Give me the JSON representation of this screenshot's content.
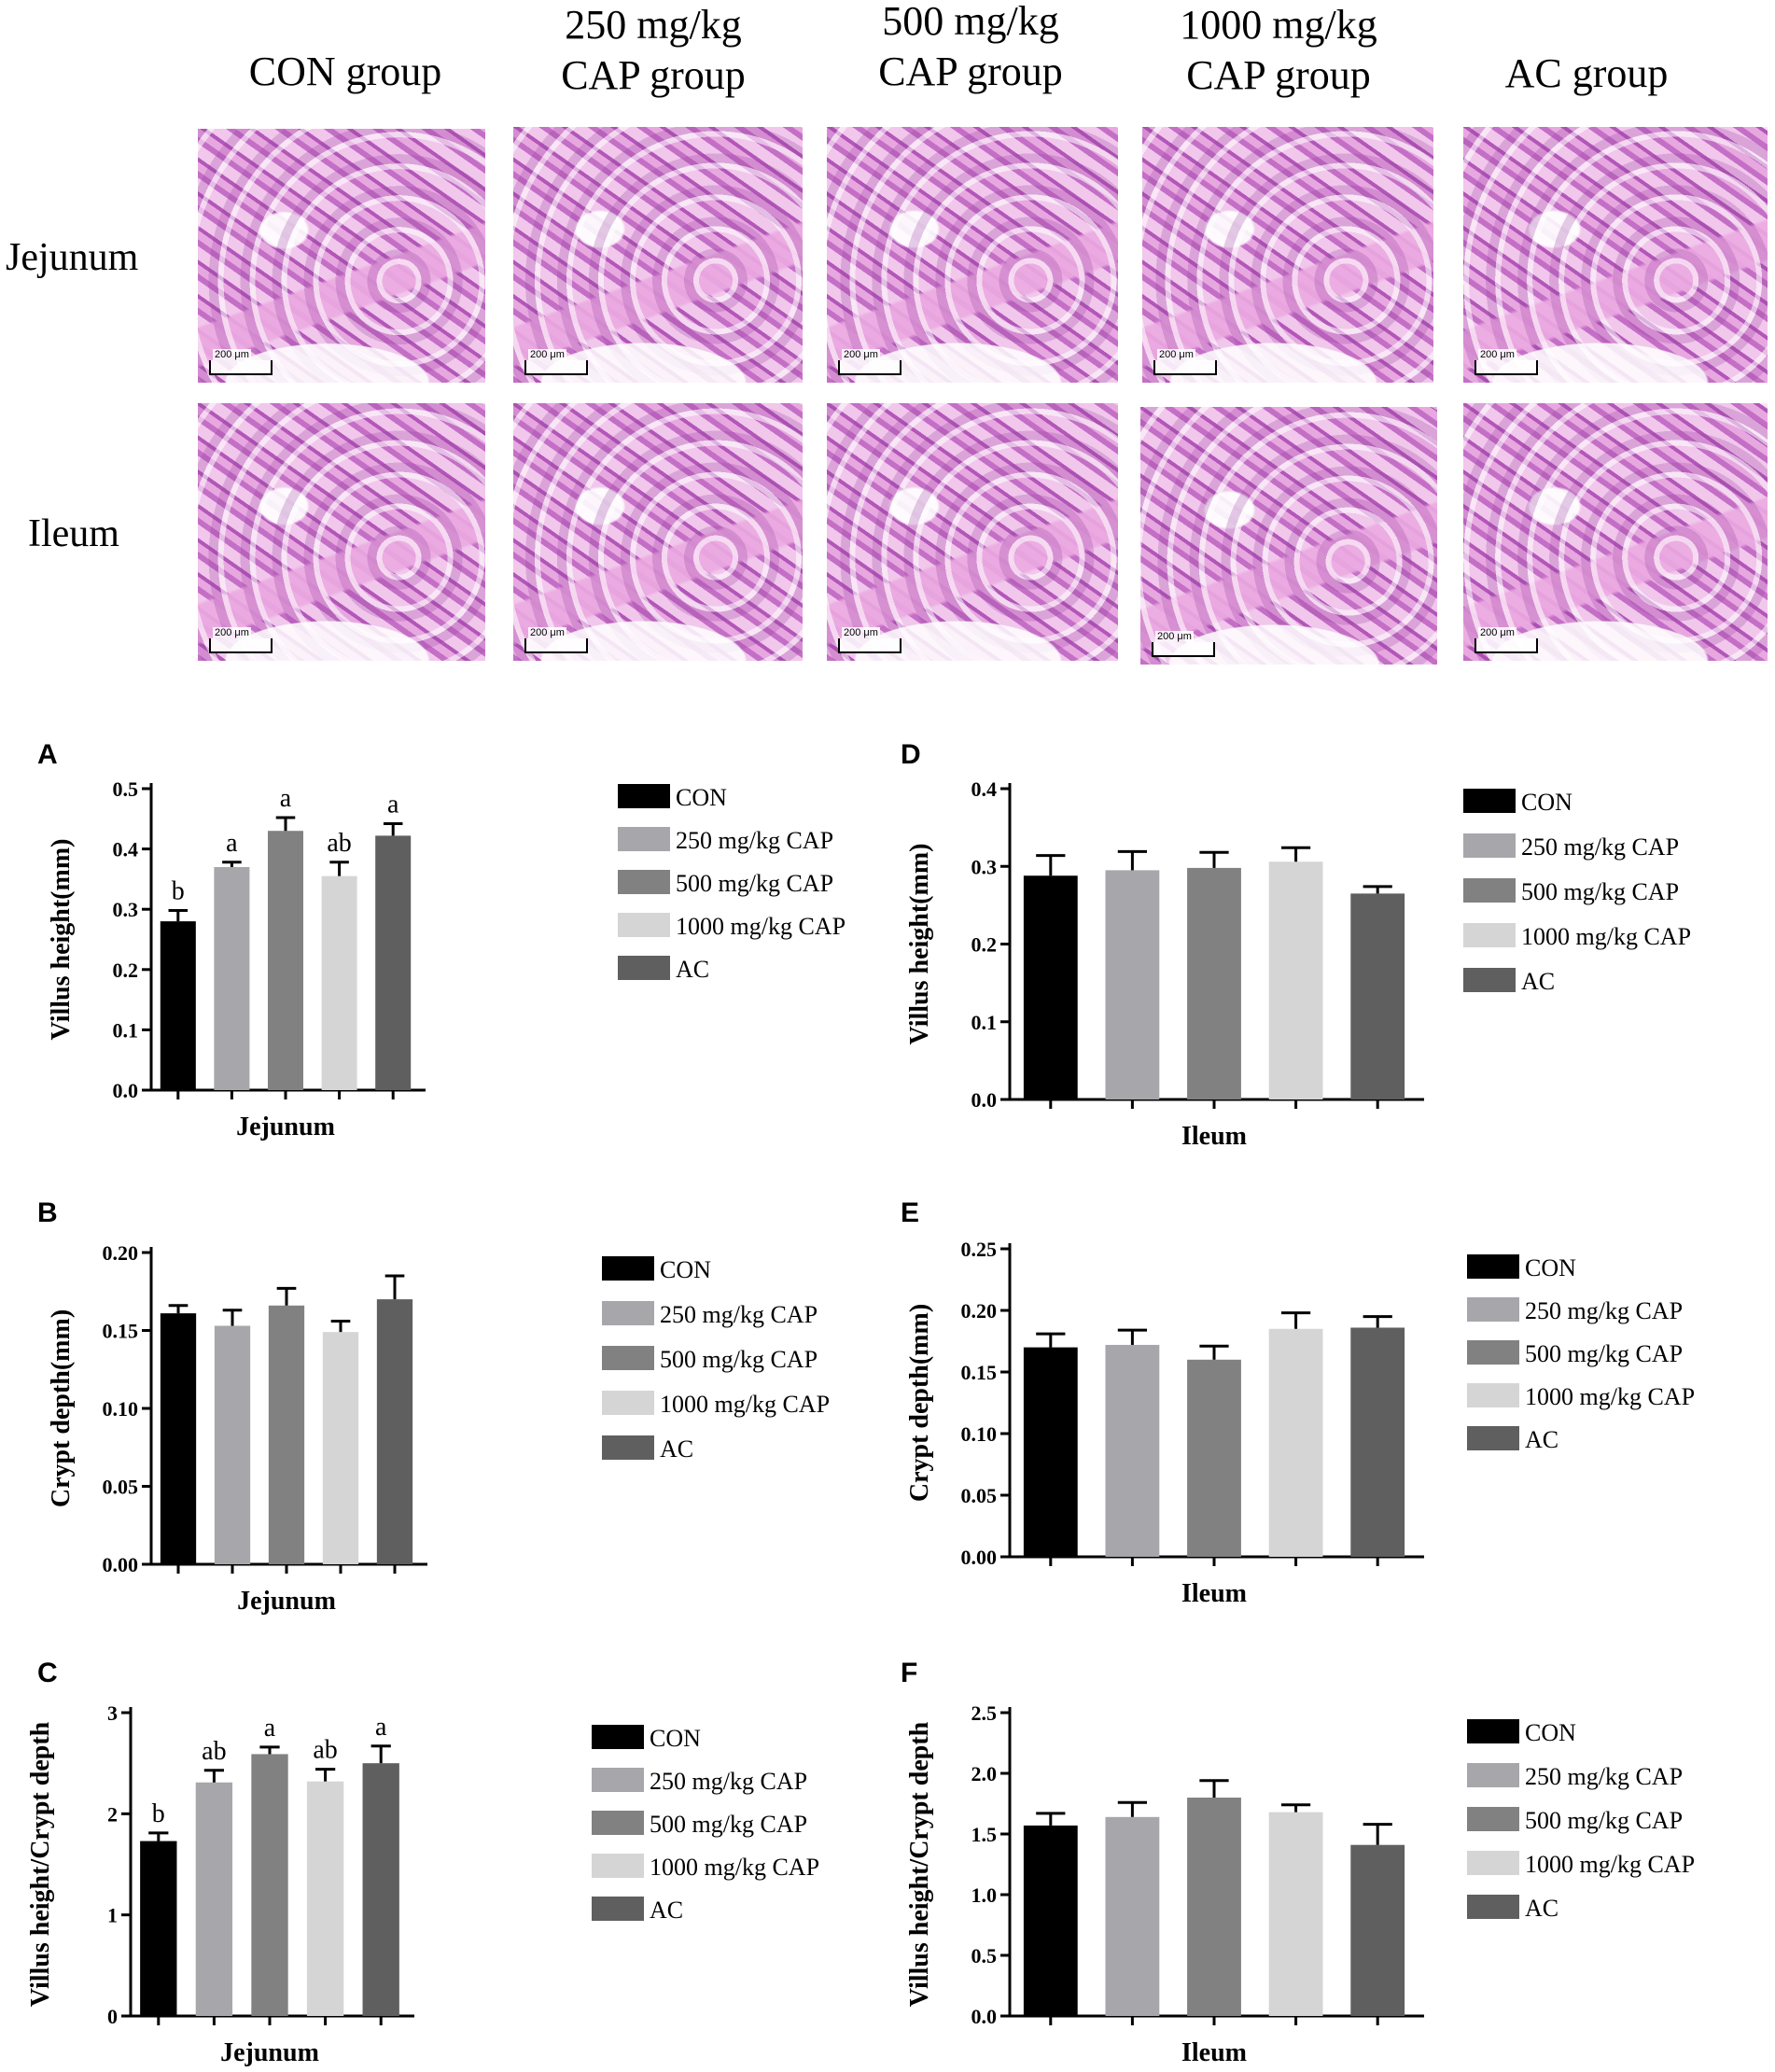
{
  "figure": {
    "column_headers": [
      [
        "CON group"
      ],
      [
        "250 mg/kg",
        "CAP group"
      ],
      [
        "500 mg/kg",
        "CAP group"
      ],
      [
        "1000 mg/kg",
        "CAP group"
      ],
      [
        "AC group"
      ]
    ],
    "row_labels": [
      "Jejunum",
      "Ileum"
    ],
    "scale_bar_label": "200 μm"
  },
  "legend": [
    "CON",
    "250 mg/kg CAP",
    "500 mg/kg CAP",
    "1000 mg/kg CAP",
    "AC"
  ],
  "colors": [
    "#000000",
    "#a6a6ab",
    "#818181",
    "#d5d5d5",
    "#5f5f5f"
  ],
  "chart_data": [
    {
      "panel": "A",
      "type": "bar",
      "categories": [
        "CON",
        "250 mg/kg CAP",
        "500 mg/kg CAP",
        "1000 mg/kg CAP",
        "AC"
      ],
      "values": [
        0.28,
        0.37,
        0.43,
        0.355,
        0.422
      ],
      "errors": [
        0.018,
        0.008,
        0.022,
        0.023,
        0.02
      ],
      "letters": [
        "b",
        "a",
        "a",
        "ab",
        "a"
      ],
      "ylabel": "Villus height(mm)",
      "xlabel": "Jejunum",
      "ylim": [
        0,
        0.5
      ],
      "yticks": [
        "0.0",
        "0.1",
        "0.2",
        "0.3",
        "0.4",
        "0.5"
      ]
    },
    {
      "panel": "D",
      "type": "bar",
      "categories": [
        "CON",
        "250 mg/kg CAP",
        "500 mg/kg CAP",
        "1000 mg/kg CAP",
        "AC"
      ],
      "values": [
        0.288,
        0.295,
        0.298,
        0.306,
        0.265
      ],
      "errors": [
        0.026,
        0.024,
        0.02,
        0.018,
        0.009
      ],
      "letters": [
        "",
        "",
        "",
        "",
        ""
      ],
      "ylabel": "Villus height(mm)",
      "xlabel": "Ileum",
      "ylim": [
        0,
        0.4
      ],
      "yticks": [
        "0.0",
        "0.1",
        "0.2",
        "0.3",
        "0.4"
      ]
    },
    {
      "panel": "B",
      "type": "bar",
      "categories": [
        "CON",
        "250 mg/kg CAP",
        "500 mg/kg CAP",
        "1000 mg/kg CAP",
        "AC"
      ],
      "values": [
        0.161,
        0.153,
        0.166,
        0.149,
        0.17
      ],
      "errors": [
        0.005,
        0.01,
        0.011,
        0.007,
        0.015
      ],
      "letters": [
        "",
        "",
        "",
        "",
        ""
      ],
      "ylabel": "Crypt depth(mm)",
      "xlabel": "Jejunum",
      "ylim": [
        0,
        0.2
      ],
      "yticks": [
        "0.00",
        "0.05",
        "0.10",
        "0.15",
        "0.20"
      ]
    },
    {
      "panel": "E",
      "type": "bar",
      "categories": [
        "CON",
        "250 mg/kg CAP",
        "500 mg/kg CAP",
        "1000 mg/kg CAP",
        "AC"
      ],
      "values": [
        0.17,
        0.172,
        0.16,
        0.185,
        0.186
      ],
      "errors": [
        0.011,
        0.012,
        0.011,
        0.013,
        0.009
      ],
      "letters": [
        "",
        "",
        "",
        "",
        ""
      ],
      "ylabel": "Crypt depth(mm)",
      "xlabel": "Ileum",
      "ylim": [
        0,
        0.25
      ],
      "yticks": [
        "0.00",
        "0.05",
        "0.10",
        "0.15",
        "0.20",
        "0.25"
      ]
    },
    {
      "panel": "C",
      "type": "bar",
      "categories": [
        "CON",
        "250 mg/kg CAP",
        "500 mg/kg CAP",
        "1000 mg/kg CAP",
        "AC"
      ],
      "values": [
        1.73,
        2.31,
        2.59,
        2.32,
        2.5
      ],
      "errors": [
        0.08,
        0.12,
        0.07,
        0.12,
        0.17
      ],
      "letters": [
        "b",
        "ab",
        "a",
        "ab",
        "a"
      ],
      "ylabel": "Villus height/Crypt depth",
      "xlabel": "Jejunum",
      "ylim": [
        0,
        3
      ],
      "yticks": [
        "0",
        "1",
        "2",
        "3"
      ]
    },
    {
      "panel": "F",
      "type": "bar",
      "categories": [
        "CON",
        "250 mg/kg CAP",
        "500 mg/kg CAP",
        "1000 mg/kg CAP",
        "AC"
      ],
      "values": [
        1.57,
        1.64,
        1.8,
        1.68,
        1.41
      ],
      "errors": [
        0.1,
        0.12,
        0.14,
        0.06,
        0.17
      ],
      "letters": [
        "",
        "",
        "",
        "",
        ""
      ],
      "ylabel": "Villus height/Crypt depth",
      "xlabel": "Ileum",
      "ylim": [
        0,
        2.5
      ],
      "yticks": [
        "0.0",
        "0.5",
        "1.0",
        "1.5",
        "2.0",
        "2.5"
      ]
    }
  ]
}
